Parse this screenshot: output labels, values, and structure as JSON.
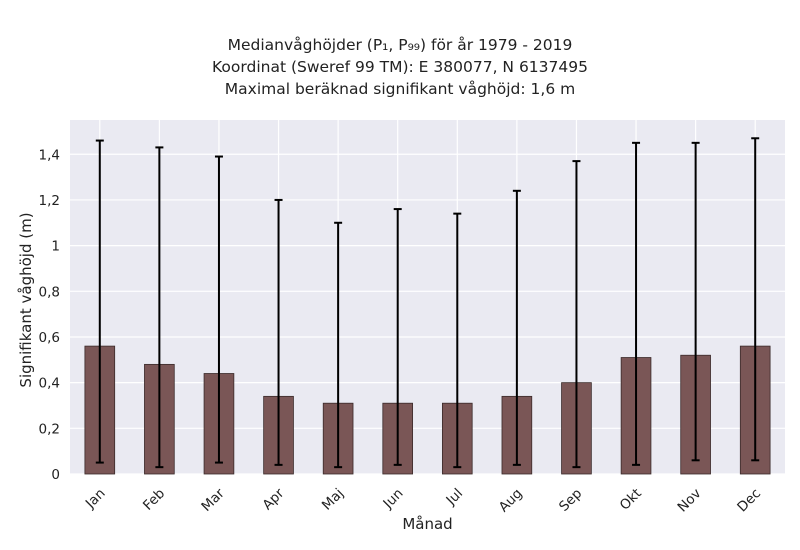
{
  "chart_data": {
    "type": "bar",
    "title_lines": [
      "Medianvåghöjder (P₁, P₉₉) för år 1979 - 2019",
      "Koordinat (Sweref 99 TM): E 380077, N 6137495",
      "Maximal beräknad signifikant våghöjd: 1,6 m"
    ],
    "xlabel": "Månad",
    "ylabel": "Signifikant våghöjd (m)",
    "categories": [
      "Jan",
      "Feb",
      "Mar",
      "Apr",
      "Maj",
      "Jun",
      "Jul",
      "Aug",
      "Sep",
      "Okt",
      "Nov",
      "Dec"
    ],
    "values": [
      0.56,
      0.48,
      0.44,
      0.34,
      0.31,
      0.31,
      0.31,
      0.34,
      0.4,
      0.51,
      0.52,
      0.56
    ],
    "error_low": [
      0.05,
      0.03,
      0.05,
      0.04,
      0.03,
      0.04,
      0.03,
      0.04,
      0.03,
      0.04,
      0.06,
      0.06
    ],
    "error_high": [
      1.46,
      1.43,
      1.39,
      1.2,
      1.1,
      1.16,
      1.14,
      1.24,
      1.37,
      1.45,
      1.45,
      1.47
    ],
    "ylim": [
      0,
      1.55
    ],
    "yticks": [
      0,
      0.2,
      0.4,
      0.6,
      0.8,
      1,
      1.2,
      1.4
    ],
    "ytick_labels": [
      "0",
      "0,2",
      "0,4",
      "0,6",
      "0,8",
      "1",
      "1,2",
      "1,4"
    ],
    "grid": true,
    "colors": {
      "bar": "#7a5656",
      "bar_edge": "#3a2a2a",
      "error": "#000000",
      "plot_bg": "#eaeaf2",
      "grid": "#ffffff"
    }
  }
}
